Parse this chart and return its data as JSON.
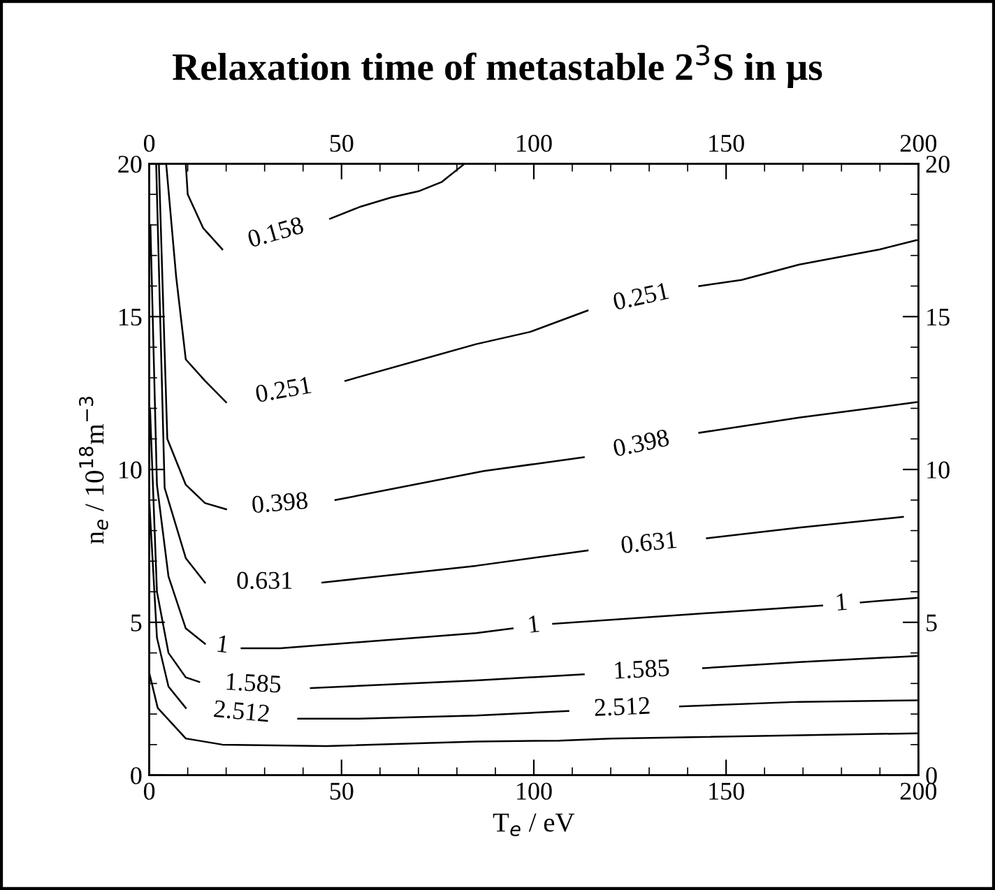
{
  "chart_data": {
    "type": "line",
    "title": "Relaxation time of metastable 2$^{3}$S in μs",
    "xlabel": "T$_{e}$ / eV",
    "ylabel": "n$_{e}$ / 10$^{18}$m$^{−3}$",
    "xlim": [
      0,
      200
    ],
    "xticks": [
      0,
      50,
      100,
      150,
      200
    ],
    "x2lim": [
      0,
      200
    ],
    "x2ticks": [
      0,
      50,
      100,
      150,
      200
    ],
    "ylim": [
      0,
      20
    ],
    "yticks": [
      0,
      5,
      10,
      15,
      20
    ],
    "y2lim": [
      0,
      20
    ],
    "y2ticks": [
      0,
      5,
      10,
      15,
      20
    ],
    "grid": false,
    "legend": false,
    "marker": "none",
    "line_style": "solid",
    "series": [
      {
        "name": "0.158",
        "color": "#000000",
        "x": [
          9.5,
          10,
          14,
          19,
          33,
          47,
          55,
          63,
          70,
          76,
          82
        ],
        "values": [
          20,
          19,
          17.9,
          17.2,
          null,
          18.2,
          18.6,
          18.9,
          19.1,
          19.4,
          20
        ]
      },
      {
        "name": "0.251",
        "color": "#000000",
        "x": [
          4.4,
          7,
          9.5,
          14.5,
          20,
          35,
          51,
          85,
          99,
          114,
          128,
          143,
          154,
          169,
          190,
          199.5
        ],
        "values": [
          20,
          16.3,
          13.6,
          12.9,
          12.2,
          null,
          12.9,
          14.1,
          14.5,
          15.2,
          null,
          16.0,
          16.2,
          16.7,
          17.2,
          17.5
        ]
      },
      {
        "name": "0.398",
        "color": "#000000",
        "x": [
          2.5,
          4.7,
          9.5,
          14.5,
          20,
          34,
          48.4,
          87,
          113,
          128,
          143,
          169,
          199.5
        ],
        "values": [
          20,
          11,
          9.5,
          8.9,
          8.7,
          null,
          9.0,
          9.95,
          10.4,
          null,
          11.2,
          11.7,
          12.2
        ]
      },
      {
        "name": "0.631",
        "color": "#000000",
        "x": [
          1.8,
          4,
          9.5,
          14.5,
          30,
          45,
          85,
          114,
          130,
          145,
          169,
          196
        ],
        "values": [
          20,
          9.4,
          7.1,
          6.3,
          null,
          6.3,
          6.85,
          7.35,
          null,
          7.75,
          8.1,
          8.45
        ]
      },
      {
        "name": "1",
        "color": "#000000",
        "x": [
          0.3,
          2,
          5,
          9.5,
          14.5,
          19,
          24,
          34,
          85,
          94.5,
          100,
          105,
          139,
          175,
          180,
          185,
          199.5
        ],
        "values": [
          18,
          9.5,
          6.5,
          4.8,
          4.3,
          null,
          4.15,
          4.15,
          4.65,
          4.8,
          null,
          4.95,
          5.25,
          5.55,
          null,
          5.65,
          5.8
        ]
      },
      {
        "name": "1.585",
        "color": "#000000",
        "x": [
          0.2,
          2,
          5,
          9.5,
          13,
          27,
          42,
          85,
          113,
          128,
          144,
          169,
          199.5
        ],
        "values": [
          12,
          6,
          4,
          3.2,
          3.05,
          null,
          2.85,
          3.1,
          3.3,
          null,
          3.5,
          3.7,
          3.9
        ]
      },
      {
        "name": "2.512",
        "color": "#000000",
        "x": [
          0,
          2,
          5,
          9.5,
          24,
          38.7,
          54.5,
          85,
          109,
          123,
          138,
          169,
          199.5
        ],
        "values": [
          9,
          4.5,
          2.9,
          2.2,
          null,
          1.85,
          1.85,
          1.95,
          2.1,
          null,
          2.25,
          2.4,
          2.45
        ]
      },
      {
        "color": "#000000",
        "x": [
          0,
          2.2,
          9.5,
          19,
          46,
          85,
          106.5,
          120,
          199.5
        ],
        "values": [
          3.35,
          2.2,
          1.2,
          1.0,
          0.95,
          1.1,
          1.13,
          1.2,
          1.37
        ]
      }
    ]
  }
}
